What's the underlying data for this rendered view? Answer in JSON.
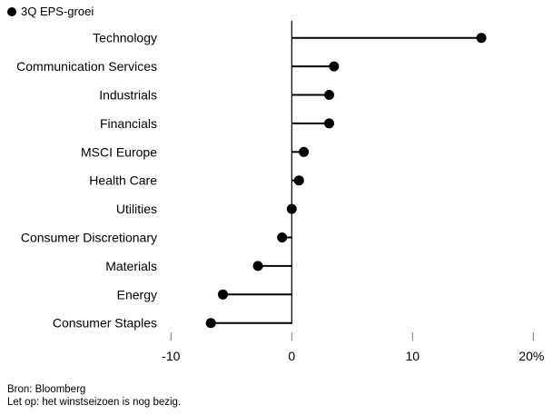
{
  "chart_data": {
    "type": "lollipop",
    "legend": "3Q EPS-groei",
    "categories": [
      "Technology",
      "Communication Services",
      "Industrials",
      "Financials",
      "MSCI Europe",
      "Health Care",
      "Utilities",
      "Consumer Discretionary",
      "Materials",
      "Energy",
      "Consumer Staples"
    ],
    "values": [
      15.7,
      3.5,
      3.1,
      3.1,
      1.0,
      0.6,
      0.0,
      -0.8,
      -2.8,
      -5.7,
      -6.7
    ],
    "xlim": [
      -10,
      20
    ],
    "xticks": [
      -10,
      0,
      10,
      20
    ],
    "xtick_labels": [
      "-10",
      "0",
      "10",
      "20%"
    ],
    "color": "#000000"
  },
  "footer": {
    "source": "Bron: Bloomberg",
    "note": "Let op: het winstseizoen is nog bezig."
  }
}
